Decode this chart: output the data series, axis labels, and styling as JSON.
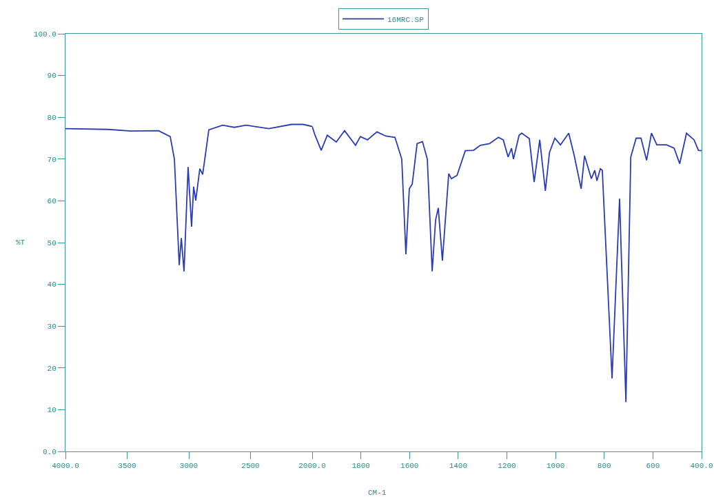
{
  "chart_data": [
    {
      "type": "line",
      "ylabel": "%T",
      "legend": "top",
      "tick_labels": "xy",
      "marker": "none",
      "line_style": "solid",
      "xlim": [
        4000,
        2000
      ],
      "xticks": [
        {
          "value": 4000,
          "label": "4000.0"
        },
        3500,
        3000,
        2500,
        {
          "value": 2000,
          "label": "2000.0"
        }
      ],
      "ylim": [
        0,
        100
      ],
      "yticks": [
        {
          "value": 0,
          "label": "0.0"
        },
        10,
        20,
        30,
        40,
        50,
        60,
        70,
        80,
        90,
        {
          "value": 100,
          "label": "100.0"
        }
      ],
      "series": [
        {
          "name": "16MRC.SP",
          "color": "#2b3bb0",
          "x": [
            4000,
            3654,
            3469,
            3246,
            3151,
            3117,
            3078,
            3061,
            3039,
            3006,
            2978,
            2961,
            2944,
            2911,
            2888,
            2838,
            2726,
            2631,
            2536,
            2352,
            2168,
            2073,
            2000
          ],
          "values": [
            77.3,
            77.1,
            76.7,
            76.8,
            75.4,
            70.0,
            44.6,
            51.1,
            43.1,
            68.1,
            53.8,
            63.4,
            60.1,
            67.7,
            66.3,
            77.0,
            78.1,
            77.6,
            78.1,
            77.3,
            78.3,
            78.3,
            77.8
          ]
        }
      ]
    },
    {
      "type": "line",
      "xlabel": "CM-1",
      "tick_labels": "x",
      "marker": "none",
      "line_style": "solid",
      "xlim": [
        2000,
        400
      ],
      "xticks": [
        1800,
        1600,
        1400,
        1200,
        1000,
        800,
        600,
        {
          "value": 400,
          "label": "400.0"
        }
      ],
      "ylim": [
        0,
        100
      ],
      "series": [
        {
          "color": "#2b3bb0",
          "x": [
            2000,
            1989,
            1963,
            1938,
            1901,
            1867,
            1822,
            1802,
            1773,
            1734,
            1697,
            1660,
            1632,
            1615,
            1601,
            1589,
            1569,
            1547,
            1527,
            1507,
            1493,
            1482,
            1465,
            1439,
            1428,
            1405,
            1371,
            1337,
            1309,
            1272,
            1235,
            1215,
            1195,
            1181,
            1173,
            1150,
            1139,
            1108,
            1088,
            1065,
            1042,
            1025,
            1003,
            980,
            946,
            924,
            895,
            881,
            853,
            839,
            830,
            816,
            808,
            768,
            737,
            711,
            691,
            669,
            649,
            626,
            606,
            584,
            544,
            513,
            490,
            462,
            431,
            413,
            400
          ],
          "values": [
            77.8,
            75.8,
            72.1,
            75.7,
            74.1,
            76.8,
            73.3,
            75.4,
            74.6,
            76.5,
            75.5,
            75.2,
            70.0,
            47.2,
            62.9,
            64.0,
            73.7,
            74.2,
            70.0,
            43.1,
            55.4,
            58.3,
            45.7,
            66.5,
            65.3,
            66.1,
            72.0,
            72.1,
            73.3,
            73.7,
            75.2,
            74.6,
            70.5,
            72.6,
            70.0,
            75.7,
            76.2,
            74.9,
            64.5,
            74.6,
            62.4,
            71.6,
            75.0,
            73.4,
            76.2,
            71.0,
            62.9,
            70.8,
            65.3,
            67.3,
            64.8,
            67.7,
            67.3,
            17.5,
            60.5,
            11.8,
            70.5,
            75.0,
            75.0,
            69.7,
            76.2,
            73.4,
            73.4,
            72.6,
            68.9,
            76.2,
            74.6,
            72.1,
            72.0
          ]
        }
      ]
    }
  ]
}
